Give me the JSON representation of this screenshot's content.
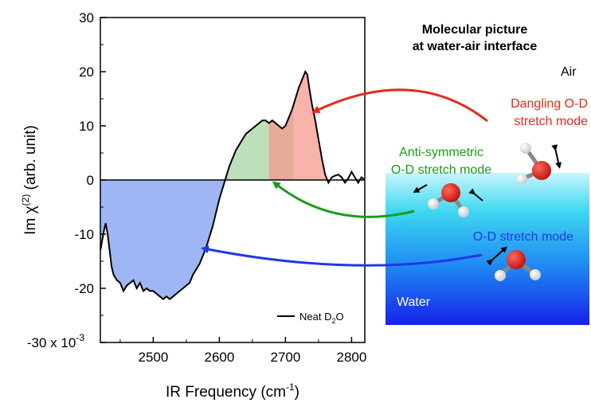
{
  "chart_data": {
    "type": "area",
    "xlabel": "IR Frequency (cm",
    "xlabel_sup": "-1",
    "xlabel_end": ")",
    "ylabel": "Im χ",
    "ylabel_sup": "(2)",
    "ylabel_unit": " (arb. unit)",
    "xlim": [
      2420,
      2820
    ],
    "ylim": [
      -30,
      30
    ],
    "x_ticks": [
      "2500",
      "2600",
      "2700",
      "2800"
    ],
    "x_tick_values": [
      2500,
      2600,
      2700,
      2800
    ],
    "y_ticks": [
      "30",
      "20",
      "10",
      "0",
      "-10",
      "-20",
      "-30 x 10"
    ],
    "y_tick_values": [
      30,
      20,
      10,
      0,
      -10,
      -20,
      -30
    ],
    "y_tick_exp": "-3",
    "legend": {
      "label": "Neat D",
      "sub": "2",
      "label_end": "O",
      "placement": "bottom-right"
    },
    "series": [
      {
        "name": "Neat D2O",
        "color": "#000000",
        "x": [
          2420,
          2423,
          2426,
          2428,
          2431,
          2434,
          2437,
          2440,
          2445,
          2450,
          2455,
          2460,
          2465,
          2470,
          2475,
          2480,
          2485,
          2490,
          2495,
          2500,
          2505,
          2510,
          2515,
          2520,
          2525,
          2530,
          2535,
          2540,
          2545,
          2550,
          2555,
          2560,
          2565,
          2570,
          2575,
          2580,
          2585,
          2590,
          2595,
          2600,
          2605,
          2610,
          2615,
          2620,
          2625,
          2630,
          2635,
          2640,
          2645,
          2650,
          2655,
          2660,
          2665,
          2670,
          2675,
          2680,
          2685,
          2690,
          2695,
          2700,
          2705,
          2710,
          2715,
          2720,
          2725,
          2730,
          2733,
          2736,
          2740,
          2745,
          2750,
          2755,
          2760,
          2765,
          2770,
          2775,
          2780,
          2785,
          2790,
          2795,
          2800,
          2805,
          2810,
          2815,
          2820
        ],
        "y": [
          -13,
          -11,
          -9,
          -8,
          -10,
          -13,
          -16,
          -17.5,
          -18.5,
          -19,
          -20.5,
          -19.5,
          -19,
          -18.5,
          -20,
          -19,
          -20.5,
          -20,
          -20.5,
          -20.5,
          -21,
          -21.5,
          -22,
          -21.5,
          -22,
          -21.5,
          -21,
          -20.5,
          -20,
          -19.5,
          -19,
          -17.5,
          -16.5,
          -15.5,
          -14,
          -12.5,
          -10.5,
          -8.5,
          -6,
          -3.5,
          -1.5,
          0.5,
          2.5,
          4,
          5.5,
          6.5,
          7.5,
          8.5,
          9,
          9.5,
          10,
          10.5,
          11,
          11,
          10.5,
          11,
          10.5,
          10,
          9.5,
          10,
          11.5,
          13,
          15,
          17,
          18.5,
          20,
          19.5,
          17,
          14,
          11,
          7.5,
          4,
          1,
          -0.5,
          0.5,
          0.8,
          1,
          0.5,
          -0.5,
          0.3,
          1.5,
          0.5,
          -0.5,
          0.5,
          0
        ]
      }
    ],
    "bands": [
      {
        "name": "O-D stretch mode",
        "color": "#7f9ef0",
        "x_range": [
          2420,
          2612
        ]
      },
      {
        "name": "Anti-symmetric O-D stretch mode",
        "color": "#a7d6a4",
        "x_range": [
          2612,
          2712
        ]
      },
      {
        "name": "Dangling O-D stretch mode",
        "color": "#f59a8e",
        "x_range": [
          2675,
          2765
        ]
      }
    ]
  },
  "annotations": {
    "title_line1": "Molecular picture",
    "title_line2": "at water-air interface",
    "air": "Air",
    "water": "Water",
    "dangling_line1": "Dangling O-D",
    "dangling_line2": "stretch mode",
    "antisym_line1": "Anti-symmetric",
    "antisym_line2": "O-D stretch mode",
    "stretch": "O-D stretch mode",
    "color_dangling": "#e8271c",
    "color_antisym": "#1a9a1a",
    "color_stretch": "#2436e8"
  }
}
